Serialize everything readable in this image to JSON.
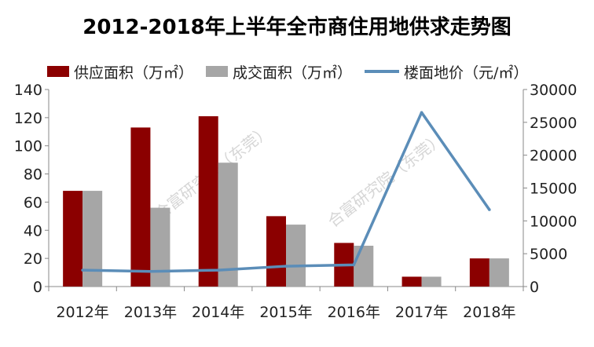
{
  "chart_data": {
    "type": "bar",
    "title": "2012-2018年上半年全市商住用地供求走势图",
    "categories": [
      "2012年",
      "2013年",
      "2014年",
      "2015年",
      "2016年",
      "2017年",
      "2018年"
    ],
    "series": [
      {
        "name": "供应面积（万㎡）",
        "type": "bar",
        "axis": "left",
        "color": "#8B0000",
        "values": [
          68,
          113,
          121,
          50,
          31,
          7,
          20
        ]
      },
      {
        "name": "成交面积（万㎡）",
        "type": "bar",
        "axis": "left",
        "color": "#A6A6A6",
        "values": [
          68,
          56,
          88,
          44,
          29,
          7,
          20
        ]
      },
      {
        "name": "楼面地价（元/㎡）",
        "type": "line",
        "axis": "right",
        "color": "#5B8DB8",
        "values": [
          2500,
          2300,
          2500,
          3100,
          3300,
          26500,
          11700
        ]
      }
    ],
    "y_left": {
      "min": 0,
      "max": 140,
      "ticks": [
        0,
        20,
        40,
        60,
        80,
        100,
        120,
        140
      ]
    },
    "y_right": {
      "min": 0,
      "max": 30000,
      "ticks": [
        0,
        5000,
        10000,
        15000,
        20000,
        25000,
        30000
      ]
    },
    "legend_position": "top",
    "grid": false
  },
  "watermark": "合富研究院（东莞）"
}
